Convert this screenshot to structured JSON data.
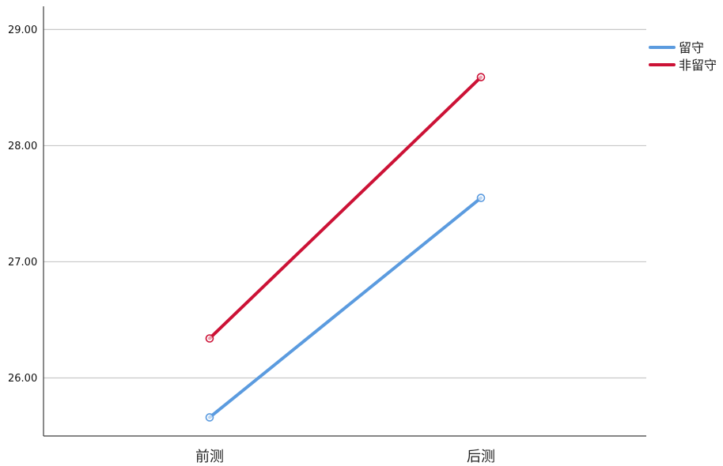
{
  "chart_data": {
    "type": "line",
    "title": "",
    "xlabel": "",
    "ylabel": "",
    "categories": [
      "前测",
      "后测"
    ],
    "y_ticks": [
      "26.00",
      "27.00",
      "28.00",
      "29.00"
    ],
    "ylim": [
      25.5,
      29.2
    ],
    "grid": true,
    "legend_position": "top-right",
    "series": [
      {
        "name": "留守",
        "values": [
          25.66,
          27.55
        ],
        "color": "#5b9bdf"
      },
      {
        "name": "非留守",
        "values": [
          26.34,
          28.59
        ],
        "color": "#cc1236"
      }
    ]
  }
}
